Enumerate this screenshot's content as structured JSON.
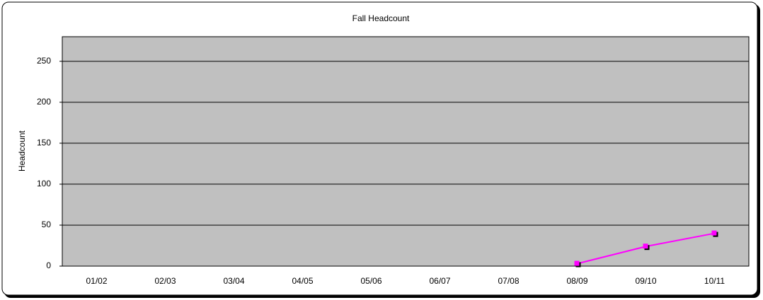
{
  "chart_data": {
    "type": "line",
    "title": "Fall Headcount",
    "y_label": "Headcount",
    "categories": [
      "01/02",
      "02/03",
      "03/04",
      "04/05",
      "05/06",
      "06/07",
      "07/08",
      "08/09",
      "09/10",
      "10/11"
    ],
    "series": [
      {
        "name": "Headcount",
        "color": "#ff00ff",
        "values": [
          null,
          null,
          null,
          null,
          null,
          null,
          null,
          3,
          24,
          40
        ]
      }
    ],
    "ylim": [
      0,
      280
    ],
    "yticks": [
      0,
      50,
      100,
      150,
      200,
      250
    ],
    "grid": true,
    "legend": false,
    "plot_background": "#c0c0c0"
  }
}
